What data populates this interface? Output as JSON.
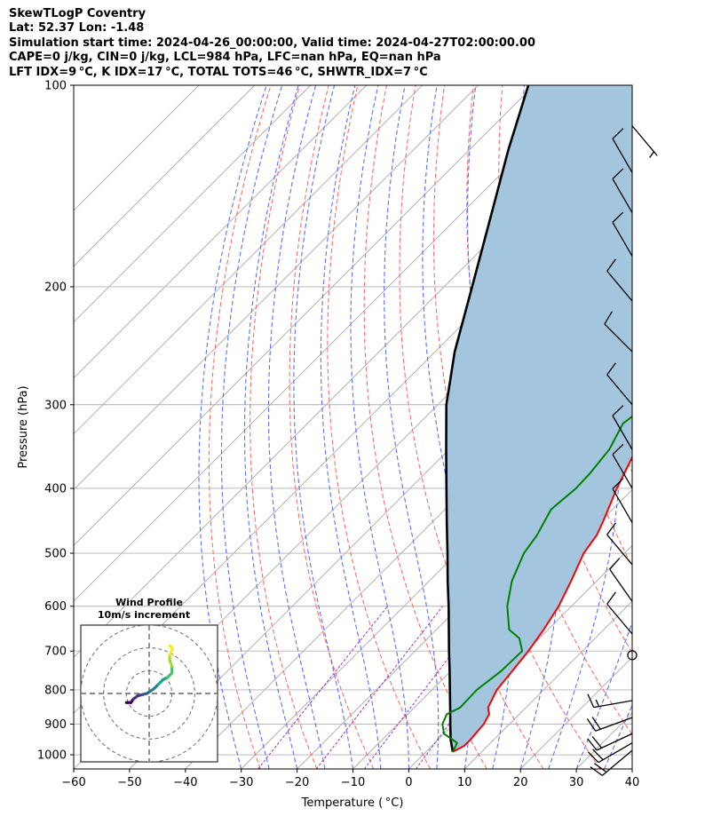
{
  "header": {
    "line1": "SkewTLogP Coventry",
    "line2": "Lat: 52.37   Lon: -1.48",
    "line3": "Simulation start time: 2024-04-26_00:00:00, Valid time: 2024-04-27T02:00:00.00",
    "line4": "CAPE=0 j/kg, CIN=0 j/kg, LCL=984 hPa, LFC=nan hPa, EQ=nan hPa",
    "line5": "LFT IDX=9 °C, K IDX=17 °C, TOTAL TOTS=46 °C, SHWTR_IDX=7 °C"
  },
  "colors": {
    "temperature": "#ff0000",
    "dewpoint": "#008000",
    "parcel": "#000000",
    "fill": "#a3c6de",
    "dry_adiabat": "#ff6a6a",
    "moist_adiabat": "#5a6eff",
    "mixing_ratio": "#9b30d0",
    "isotherm": "#aaaaaa"
  },
  "chart_data": [
    {
      "type": "skewt",
      "title": "",
      "xlabel": "Temperature ( °C)",
      "ylabel": "Pressure (hPa)",
      "xlim": [
        -60,
        40
      ],
      "ylim": [
        1050,
        100
      ],
      "y_scale": "log",
      "skew_deg": 45,
      "grid": true,
      "x_ticks": [
        -60,
        -50,
        -40,
        -30,
        -20,
        -10,
        0,
        10,
        20,
        30,
        40
      ],
      "x_tick_labels": [
        "−60",
        "−50",
        "−40",
        "−30",
        "−20",
        "−10",
        "0",
        "10",
        "20",
        "30",
        "40"
      ],
      "y_ticks": [
        1000,
        900,
        800,
        700,
        600,
        500,
        400,
        300,
        200,
        100
      ],
      "y_tick_labels": [
        "1000",
        "900",
        "800",
        "700",
        "600",
        "500",
        "400",
        "300",
        "200",
        "100"
      ],
      "series": [
        {
          "key": "temperature",
          "points": [
            [
              990,
              4.8
            ],
            [
              970,
              5.8
            ],
            [
              950,
              5.8
            ],
            [
              900,
              5.4
            ],
            [
              870,
              4.6
            ],
            [
              850,
              3.2
            ],
            [
              800,
              1.6
            ],
            [
              750,
              1.0
            ],
            [
              700,
              0.3
            ],
            [
              650,
              -0.8
            ],
            [
              600,
              -2.3
            ],
            [
              550,
              -4.6
            ],
            [
              500,
              -7.3
            ],
            [
              470,
              -8.2
            ],
            [
              450,
              -9.4
            ],
            [
              400,
              -13.0
            ],
            [
              350,
              -16.5
            ],
            [
              320,
              -18.1
            ],
            [
              300,
              -17.4
            ],
            [
              280,
              -15.6
            ],
            [
              250,
              -15.2
            ],
            [
              220,
              -13.8
            ],
            [
              200,
              -13.6
            ],
            [
              180,
              -14.3
            ],
            [
              160,
              -14.9
            ],
            [
              140,
              -16.8
            ],
            [
              125,
              -17.8
            ],
            [
              112,
              -17.3
            ],
            [
              100,
              -18.6
            ]
          ]
        },
        {
          "key": "dewpoint",
          "points": [
            [
              990,
              4.8
            ],
            [
              960,
              4.0
            ],
            [
              930,
              0.0
            ],
            [
              900,
              -2.0
            ],
            [
              870,
              -3.0
            ],
            [
              850,
              -1.8
            ],
            [
              800,
              -2.0
            ],
            [
              750,
              -1.0
            ],
            [
              700,
              -0.8
            ],
            [
              670,
              -3.6
            ],
            [
              650,
              -7.0
            ],
            [
              600,
              -11.5
            ],
            [
              550,
              -15.2
            ],
            [
              500,
              -18.0
            ],
            [
              470,
              -18.9
            ],
            [
              430,
              -21.0
            ],
            [
              400,
              -20.3
            ],
            [
              380,
              -20.5
            ],
            [
              350,
              -21.3
            ],
            [
              320,
              -23.5
            ],
            [
              300,
              -22.5
            ],
            [
              280,
              -24.5
            ],
            [
              250,
              -24.7
            ],
            [
              230,
              -24.0
            ],
            [
              210,
              -25.0
            ],
            [
              190,
              -33.2
            ],
            [
              150,
              -40.0
            ],
            [
              120,
              -47.0
            ],
            [
              100,
              -55.0
            ]
          ]
        },
        {
          "key": "parcel",
          "points": [
            [
              990,
              4.8
            ],
            [
              950,
              2.3
            ],
            [
              900,
              -0.6
            ],
            [
              850,
              -3.6
            ],
            [
              800,
              -6.8
            ],
            [
              750,
              -10.2
            ],
            [
              700,
              -13.9
            ],
            [
              650,
              -17.8
            ],
            [
              600,
              -22.0
            ],
            [
              550,
              -26.7
            ],
            [
              500,
              -31.7
            ],
            [
              450,
              -37.3
            ],
            [
              400,
              -43.5
            ],
            [
              350,
              -50.5
            ],
            [
              300,
              -58.5
            ],
            [
              250,
              -66.5
            ],
            [
              200,
              -75.0
            ],
            [
              150,
              -86.0
            ],
            [
              125,
              -93.0
            ],
            [
              100,
              -101.0
            ]
          ]
        }
      ],
      "wind_barbs": [
        {
          "p": 985,
          "speed": 20,
          "dir": 230
        },
        {
          "p": 960,
          "speed": 20,
          "dir": 240
        },
        {
          "p": 930,
          "speed": 20,
          "dir": 245
        },
        {
          "p": 880,
          "speed": 20,
          "dir": 250
        },
        {
          "p": 830,
          "speed": 15,
          "dir": 260
        },
        {
          "p": 710,
          "speed": 0,
          "dir": 0
        },
        {
          "p": 660,
          "speed": 10,
          "dir": 320
        },
        {
          "p": 590,
          "speed": 10,
          "dir": 325
        },
        {
          "p": 520,
          "speed": 10,
          "dir": 320
        },
        {
          "p": 450,
          "speed": 10,
          "dir": 330
        },
        {
          "p": 400,
          "speed": 10,
          "dir": 330
        },
        {
          "p": 350,
          "speed": 10,
          "dir": 330
        },
        {
          "p": 300,
          "speed": 10,
          "dir": 320
        },
        {
          "p": 250,
          "speed": 10,
          "dir": 315
        },
        {
          "p": 210,
          "speed": 10,
          "dir": 320
        },
        {
          "p": 180,
          "speed": 10,
          "dir": 330
        },
        {
          "p": 155,
          "speed": 10,
          "dir": 330
        },
        {
          "p": 135,
          "speed": 10,
          "dir": 330
        },
        {
          "p": 115,
          "speed": 5,
          "dir": 140
        }
      ]
    },
    {
      "type": "hodograph",
      "title": "Wind Profile",
      "subtitle": "10m/s increment",
      "rings_ms": [
        10,
        20,
        30
      ],
      "xlim": [
        -30,
        30
      ],
      "ylim": [
        -30,
        30
      ],
      "points": [
        [
          -10,
          -4
        ],
        [
          -8,
          -4
        ],
        [
          -7,
          -2.5
        ],
        [
          -5,
          -1
        ],
        [
          -3,
          -0.5
        ],
        [
          -1,
          0
        ],
        [
          0.5,
          1
        ],
        [
          2,
          2
        ],
        [
          4,
          4
        ],
        [
          6,
          6
        ],
        [
          8,
          7
        ],
        [
          10,
          9
        ],
        [
          10,
          12
        ],
        [
          9,
          14.5
        ],
        [
          9,
          17
        ],
        [
          10,
          19
        ],
        [
          10,
          20
        ],
        [
          9,
          21
        ]
      ]
    }
  ]
}
